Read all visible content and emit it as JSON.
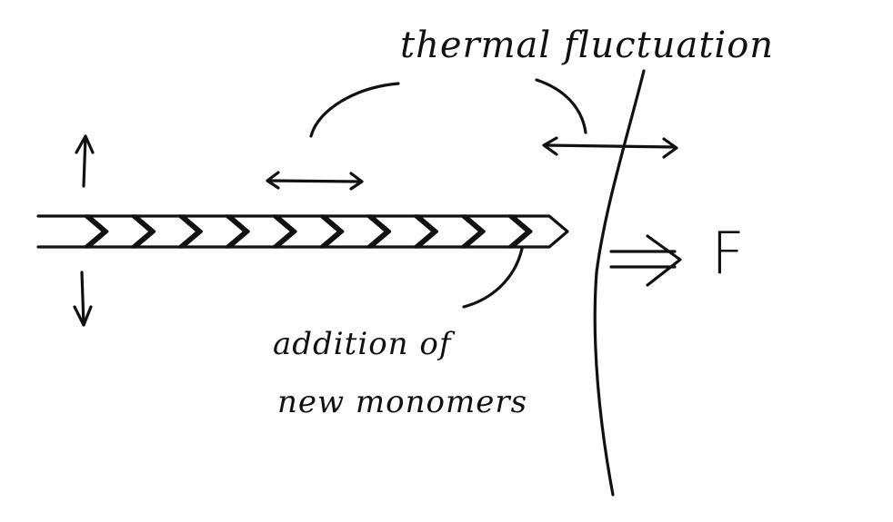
{
  "diagram": {
    "labels": {
      "thermal_fluctuation": "thermal fluctuation",
      "addition_line1": "addition of",
      "addition_line2": "new monomers",
      "force": "F"
    },
    "filament": {
      "monomer_count": 11
    },
    "colors": {
      "ink": "#111111",
      "background": "#ffffff"
    }
  }
}
